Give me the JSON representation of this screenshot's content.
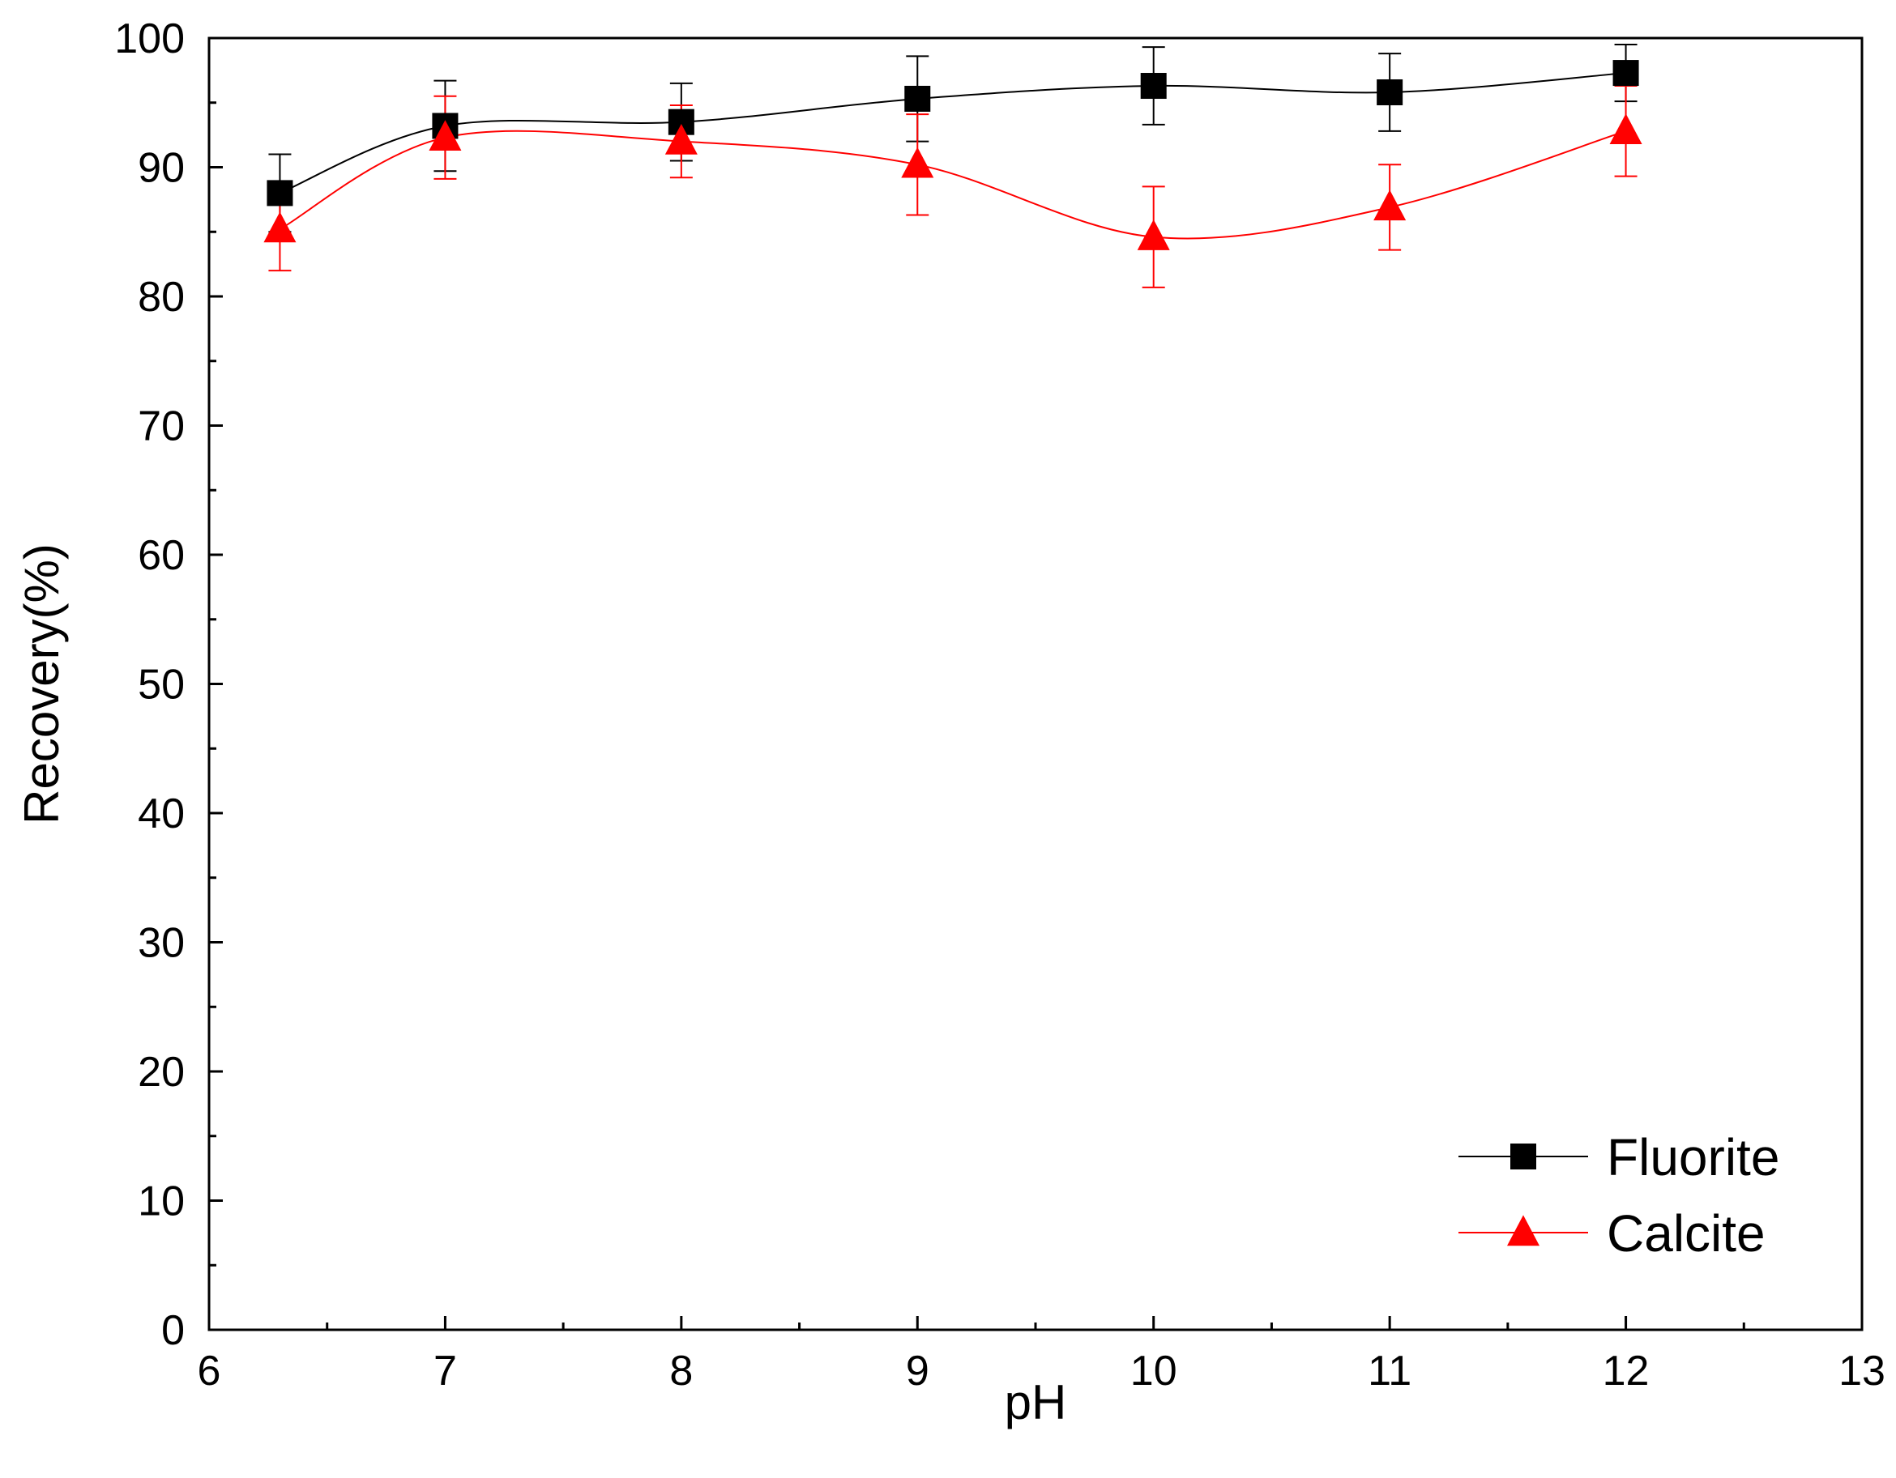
{
  "chart_data": {
    "type": "line",
    "title": "",
    "xlabel": "pH",
    "ylabel": "Recovery(%)",
    "xlim": [
      6,
      13
    ],
    "ylim": [
      0,
      100
    ],
    "xticks": [
      6,
      7,
      8,
      9,
      10,
      11,
      12,
      13
    ],
    "yticks": [
      0,
      10,
      20,
      30,
      40,
      50,
      60,
      70,
      80,
      90,
      100
    ],
    "grid": false,
    "legend_position": "bottom-right",
    "series": [
      {
        "name": "Fluorite",
        "color": "#000000",
        "marker": "square",
        "x": [
          6.3,
          7,
          8,
          9,
          10,
          11,
          12
        ],
        "y": [
          88.0,
          93.2,
          93.5,
          95.3,
          96.3,
          95.8,
          97.3
        ],
        "error": [
          3.0,
          3.5,
          3.0,
          3.3,
          3.0,
          3.0,
          2.2
        ]
      },
      {
        "name": "Calcite",
        "color": "#ff0000",
        "marker": "triangle",
        "x": [
          6.3,
          7,
          8,
          9,
          10,
          11,
          12
        ],
        "y": [
          85.2,
          92.3,
          92.0,
          90.2,
          84.6,
          86.9,
          92.8
        ],
        "error": [
          3.2,
          3.2,
          2.8,
          3.9,
          3.9,
          3.3,
          3.5
        ]
      }
    ]
  }
}
